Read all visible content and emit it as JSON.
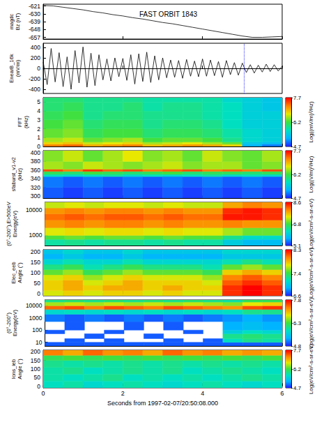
{
  "chart_data": [
    {
      "type": "line",
      "title": "FAST ORBIT 1843",
      "ylabel": [
        "magdc",
        "Bz (nT)"
      ],
      "color": "#000000",
      "tick_labels": "y",
      "x": [
        0,
        0.25,
        0.5,
        0.75,
        1,
        1.25,
        1.5,
        1.75,
        2,
        2.25,
        2.5,
        2.75,
        3,
        3.25,
        3.5,
        3.75,
        4,
        4.25,
        4.5,
        4.75,
        5,
        5.25,
        5.5,
        5.75,
        6
      ],
      "values": [
        -620.5,
        -621,
        -622.5,
        -624,
        -625.5,
        -627.5,
        -629,
        -631,
        -632.5,
        -634.5,
        -636,
        -638,
        -640,
        -641.5,
        -643.5,
        -645.5,
        -647.5,
        -649.5,
        -651.5,
        -653.5,
        -655.5,
        -657,
        -657,
        -656.5,
        -656
      ],
      "xlim": [
        0,
        6
      ],
      "xticks": [
        0,
        2,
        4,
        6
      ],
      "ylim": [
        -659,
        -619
      ],
      "yticks": [
        -621,
        -630,
        -639,
        -648,
        -657
      ]
    },
    {
      "type": "line",
      "ylabel": [
        "EnearB_16k",
        "(mV/m)"
      ],
      "color": "#000000",
      "tick_labels": "y",
      "vline": 5.05,
      "x": [
        0,
        0.1,
        0.2,
        0.3,
        0.4,
        0.5,
        0.6,
        0.7,
        0.8,
        0.9,
        1,
        1.1,
        1.2,
        1.3,
        1.4,
        1.5,
        1.6,
        1.7,
        1.8,
        1.9,
        2,
        2.1,
        2.2,
        2.3,
        2.4,
        2.5,
        2.6,
        2.7,
        2.8,
        2.9,
        3,
        3.1,
        3.2,
        3.3,
        3.4,
        3.5,
        3.6,
        3.7,
        3.8,
        3.9,
        4,
        4.1,
        4.2,
        4.3,
        4.4,
        4.5,
        4.6,
        4.7,
        4.8,
        4.9,
        5,
        5.1,
        5.2,
        5.3,
        5.4,
        5.5,
        5.6,
        5.7,
        5.8,
        5.9,
        6
      ],
      "values": [
        120,
        -310,
        380,
        -260,
        300,
        -350,
        220,
        -400,
        340,
        -280,
        410,
        -360,
        290,
        -330,
        260,
        -220,
        180,
        -240,
        200,
        -160,
        190,
        -230,
        260,
        -300,
        280,
        -250,
        310,
        -270,
        240,
        -220,
        200,
        -180,
        160,
        -170,
        150,
        -190,
        170,
        -150,
        140,
        -160,
        180,
        -150,
        160,
        -140,
        130,
        -170,
        150,
        -120,
        110,
        -130,
        100,
        -80,
        70,
        -90,
        60,
        -70,
        80,
        -60,
        70,
        -50,
        40
      ],
      "xlim": [
        0,
        6
      ],
      "xticks": [
        0,
        2,
        4,
        6
      ],
      "ylim": [
        -480,
        480
      ],
      "yticks": [
        -400,
        -200,
        0,
        200,
        400
      ]
    },
    {
      "type": "heatmap",
      "ylabel": [
        "FFT",
        "(kHz)"
      ],
      "tick_labels": "y",
      "x_edges": [
        0,
        0.5,
        1,
        1.5,
        2,
        2.5,
        3,
        3.5,
        4,
        4.5,
        5,
        5.5,
        6
      ],
      "y_edges": [
        0,
        0.25,
        0.5,
        1,
        2,
        3,
        4,
        5,
        5.5
      ],
      "cells": [
        [
          7.2,
          7.3,
          7.0,
          7.1,
          7.2,
          6.9,
          7.0,
          7.1,
          7.0,
          6.8,
          5.2,
          5.0
        ],
        [
          6.8,
          6.9,
          6.6,
          6.7,
          6.8,
          6.5,
          6.6,
          6.7,
          6.5,
          6.3,
          5.4,
          5.3
        ],
        [
          6.5,
          6.6,
          6.3,
          6.4,
          6.5,
          6.2,
          6.3,
          6.3,
          6.2,
          5.9,
          5.6,
          5.5
        ],
        [
          6.3,
          6.4,
          6.1,
          6.2,
          6.2,
          6.0,
          6.1,
          6.1,
          6.0,
          5.8,
          5.6,
          5.5
        ],
        [
          6.2,
          6.3,
          6.0,
          6.1,
          6.1,
          5.9,
          6.0,
          6.0,
          5.9,
          5.7,
          5.5,
          5.5
        ],
        [
          6.1,
          6.2,
          5.9,
          6.0,
          6.0,
          5.9,
          5.9,
          5.9,
          5.8,
          5.7,
          5.5,
          5.5
        ],
        [
          6.0,
          6.1,
          5.9,
          5.9,
          6.0,
          5.8,
          5.9,
          5.9,
          5.8,
          5.7,
          5.5,
          5.4
        ],
        [
          6.0,
          6.0,
          5.9,
          5.9,
          5.9,
          5.8,
          5.8,
          5.8,
          5.8,
          5.6,
          5.5,
          5.4
        ]
      ],
      "colorbar_label": "Log((mV/m)²/Hz)",
      "colorbar_range": [
        4.7,
        7.7
      ],
      "colorbar_ticks": [
        4.7,
        6.2,
        7.7
      ],
      "xlim": [
        0,
        6
      ],
      "xticks": [
        0,
        2,
        4,
        6
      ],
      "ylim": [
        0,
        5.5
      ],
      "yticks": [
        0,
        1,
        2,
        3,
        4,
        5
      ]
    },
    {
      "type": "heatmap",
      "ylabel": [
        "sfaburst_v1-v2",
        "(kHz)"
      ],
      "tick_labels": "y",
      "x_edges": [
        0,
        0.5,
        1,
        1.5,
        2,
        2.5,
        3,
        3.5,
        4,
        4.5,
        5,
        5.5,
        6
      ],
      "y_edges": [
        295,
        320,
        345,
        350,
        357,
        362,
        380,
        405
      ],
      "cells": [
        [
          4.9,
          4.8,
          4.9,
          4.8,
          4.9,
          4.8,
          4.9,
          4.8,
          4.9,
          4.8,
          4.9,
          4.8
        ],
        [
          5.0,
          4.9,
          5.0,
          4.9,
          5.0,
          4.9,
          5.0,
          4.9,
          5.0,
          4.9,
          5.0,
          4.9
        ],
        [
          5.7,
          5.6,
          5.7,
          5.8,
          5.6,
          5.7,
          5.6,
          5.7,
          5.8,
          5.6,
          5.7,
          5.6
        ],
        [
          6.1,
          6.0,
          6.2,
          6.1,
          6.0,
          6.1,
          6.2,
          6.0,
          6.1,
          6.1,
          6.0,
          6.1
        ],
        [
          7.4,
          7.2,
          7.5,
          7.3,
          7.4,
          7.2,
          7.3,
          7.4,
          7.2,
          7.3,
          7.2,
          7.4
        ],
        [
          6.5,
          6.4,
          6.6,
          6.5,
          6.4,
          6.5,
          6.6,
          6.4,
          6.5,
          6.5,
          6.3,
          6.4
        ],
        [
          6.4,
          6.6,
          6.3,
          6.5,
          6.7,
          6.4,
          6.5,
          6.3,
          6.6,
          6.4,
          6.3,
          6.5
        ]
      ],
      "colorbar_label": "Log((V/m)²/Hz)",
      "colorbar_range": [
        4.7,
        7.7
      ],
      "colorbar_ticks": [
        4.7,
        6.2,
        7.7
      ],
      "xlim": [
        0,
        6
      ],
      "xticks": [
        0,
        2,
        4,
        6
      ],
      "ylim": [
        295,
        405
      ],
      "yticks": [
        300,
        320,
        340,
        360,
        380,
        400
      ]
    },
    {
      "type": "heatmap",
      "ylabel": [
        "(0°-200°),E>500eV",
        "Energy(eV)"
      ],
      "tick_labels": "y",
      "log": "y",
      "x_edges": [
        0,
        0.5,
        1,
        1.5,
        2,
        2.5,
        3,
        3.5,
        4,
        4.5,
        5,
        5.5,
        6
      ],
      "y_edges": [
        400,
        700,
        1000,
        2000,
        4000,
        7000,
        12000,
        20000
      ],
      "cells": [
        [
          6.4,
          6.5,
          6.4,
          6.5,
          6.5,
          6.4,
          6.5,
          6.4,
          6.4,
          6.0,
          5.8,
          5.8
        ],
        [
          6.9,
          7.0,
          6.9,
          7.0,
          7.0,
          6.9,
          7.0,
          6.9,
          6.9,
          6.5,
          6.2,
          6.2
        ],
        [
          7.4,
          7.5,
          7.4,
          7.5,
          7.5,
          7.4,
          7.5,
          7.4,
          7.4,
          7.2,
          7.0,
          7.0
        ],
        [
          7.9,
          8.0,
          7.9,
          8.0,
          8.0,
          7.9,
          8.0,
          7.9,
          7.9,
          8.0,
          7.9,
          7.9
        ],
        [
          8.1,
          8.2,
          8.1,
          8.2,
          8.2,
          8.1,
          8.2,
          8.1,
          8.1,
          8.5,
          8.5,
          8.4
        ],
        [
          7.9,
          8.0,
          7.9,
          8.0,
          8.0,
          7.9,
          8.0,
          7.9,
          7.9,
          8.4,
          8.5,
          8.4
        ],
        [
          7.3,
          7.4,
          7.3,
          7.4,
          7.4,
          7.3,
          7.4,
          7.3,
          7.3,
          7.8,
          8.0,
          7.9
        ]
      ],
      "colorbar_label": "Log(eV/cm²-s-sr-eV)",
      "colorbar_range": [
        5.1,
        8.6
      ],
      "colorbar_ticks": [
        5.1,
        6.8,
        8.6
      ],
      "xlim": [
        0,
        6
      ],
      "xticks": [
        0,
        2,
        4,
        6
      ],
      "ylim": [
        400,
        20000
      ],
      "yticks": [
        1000,
        10000
      ]
    },
    {
      "type": "heatmap",
      "ylabel": [
        "Elec_eeb",
        "Angle (°)"
      ],
      "tick_labels": "y",
      "x_edges": [
        0,
        0.5,
        1,
        1.5,
        2,
        2.5,
        3,
        3.5,
        4,
        4.5,
        5,
        5.5,
        6
      ],
      "y_edges": [
        -10,
        15,
        40,
        65,
        90,
        115,
        140,
        165,
        190,
        210
      ],
      "cells": [
        [
          7.7,
          7.8,
          7.7,
          7.8,
          7.8,
          7.7,
          7.8,
          7.7,
          7.7,
          8.2,
          8.3,
          8.2
        ],
        [
          7.8,
          7.9,
          7.8,
          7.9,
          7.9,
          7.8,
          7.9,
          7.8,
          7.8,
          8.2,
          8.3,
          8.2
        ],
        [
          7.8,
          7.9,
          7.7,
          7.8,
          7.9,
          7.8,
          7.8,
          7.8,
          7.7,
          8.1,
          8.2,
          8.1
        ],
        [
          7.7,
          7.8,
          7.6,
          7.7,
          7.8,
          7.7,
          7.7,
          7.7,
          7.6,
          8.0,
          8.1,
          8.0
        ],
        [
          7.5,
          7.6,
          7.4,
          7.5,
          7.6,
          7.5,
          7.5,
          7.5,
          7.4,
          7.8,
          7.9,
          7.8
        ],
        [
          7.3,
          7.4,
          7.2,
          7.3,
          7.4,
          7.3,
          7.3,
          7.3,
          7.2,
          7.5,
          7.6,
          7.5
        ],
        [
          7.1,
          7.2,
          7.1,
          7.1,
          7.2,
          7.1,
          7.1,
          7.1,
          7.1,
          7.2,
          7.3,
          7.2
        ],
        [
          6.9,
          7.0,
          6.9,
          6.9,
          7.0,
          6.9,
          6.9,
          6.9,
          6.9,
          7.0,
          7.0,
          7.0
        ],
        [
          7.0,
          7.1,
          7.0,
          7.0,
          7.1,
          7.0,
          7.0,
          7.0,
          7.0,
          7.1,
          7.1,
          7.1
        ]
      ],
      "colorbar_label": "Log(eV/cm²-s-sr-eV)",
      "colorbar_range": [
        6.6,
        8.3
      ],
      "colorbar_ticks": [
        6.6,
        7.4,
        8.3
      ],
      "xlim": [
        0,
        6
      ],
      "xticks": [
        0,
        2,
        4,
        6
      ],
      "ylim": [
        -10,
        210
      ],
      "yticks": [
        0,
        50,
        100,
        150,
        200
      ]
    },
    {
      "type": "heatmap",
      "ylabel": [
        "(0°-200°)",
        "Energy(eV)"
      ],
      "tick_labels": "y",
      "log": "y",
      "x_edges": [
        0,
        0.5,
        1,
        1.5,
        2,
        2.5,
        3,
        3.5,
        4,
        4.5,
        5,
        5.5,
        6
      ],
      "y_edges": [
        5,
        10,
        20,
        50,
        100,
        500,
        2000,
        5000,
        10000,
        20000,
        30000
      ],
      "cells": [
        [
          5.0,
          5.0,
          5.0,
          5.0,
          5.0,
          5.0,
          5.0,
          5.0,
          5.0,
          5.0,
          5.0,
          5.0
        ],
        [
          null,
          5.0,
          null,
          5.0,
          null,
          null,
          5.0,
          null,
          5.0,
          5.8,
          6.0,
          5.9
        ],
        [
          null,
          null,
          5.0,
          null,
          null,
          5.0,
          null,
          null,
          null,
          6.0,
          6.1,
          6.0
        ],
        [
          5.0,
          null,
          null,
          5.0,
          null,
          null,
          null,
          5.0,
          null,
          5.6,
          5.8,
          5.7
        ],
        [
          null,
          5.0,
          null,
          null,
          5.0,
          null,
          5.0,
          null,
          null,
          5.3,
          5.4,
          5.3
        ],
        [
          5.1,
          5.0,
          5.1,
          5.0,
          5.1,
          5.0,
          5.1,
          5.0,
          5.1,
          5.2,
          5.3,
          5.2
        ],
        [
          5.7,
          5.8,
          5.7,
          5.8,
          5.7,
          5.8,
          5.7,
          5.8,
          5.7,
          5.8,
          6.0,
          6.0
        ],
        [
          7.4,
          7.5,
          7.3,
          7.5,
          7.4,
          7.3,
          7.5,
          7.4,
          7.3,
          7.2,
          7.5,
          7.6
        ],
        [
          6.6,
          6.7,
          6.6,
          6.7,
          6.6,
          6.7,
          6.6,
          6.7,
          6.6,
          6.5,
          6.8,
          6.9
        ],
        [
          6.0,
          6.1,
          6.0,
          6.1,
          6.0,
          6.1,
          6.0,
          6.1,
          6.0,
          5.9,
          6.2,
          6.2
        ]
      ],
      "colorbar_label": "Log(eV/cm²-s-sr-eV)",
      "colorbar_range": [
        4.8,
        7.8
      ],
      "colorbar_ticks": [
        4.8,
        6.3,
        7.8
      ],
      "xlim": [
        0,
        6
      ],
      "xticks": [
        0,
        2,
        4,
        6
      ],
      "ylim": [
        5,
        30000
      ],
      "yticks": [
        10,
        100,
        1000,
        10000
      ]
    },
    {
      "type": "heatmap",
      "ylabel": [
        "Ions_ieb",
        "Angle (°)"
      ],
      "xlabel": "Seconds from 1997-02-07/20:50:08.000",
      "x_edges": [
        0,
        0.5,
        1,
        1.5,
        2,
        2.5,
        3,
        3.5,
        4,
        4.5,
        5,
        5.5,
        6
      ],
      "y_edges": [
        -10,
        30,
        70,
        110,
        150,
        180,
        210
      ],
      "cells": [
        [
          5.7,
          5.8,
          5.6,
          5.7,
          5.8,
          5.7,
          5.6,
          5.7,
          5.8,
          5.7,
          5.6,
          5.7
        ],
        [
          5.8,
          5.7,
          5.8,
          5.9,
          5.7,
          5.8,
          5.7,
          5.8,
          5.7,
          5.8,
          5.9,
          5.8
        ],
        [
          5.8,
          5.9,
          5.7,
          5.8,
          5.9,
          5.8,
          5.9,
          5.7,
          5.8,
          5.9,
          5.8,
          5.7
        ],
        [
          5.9,
          5.8,
          5.9,
          5.8,
          5.9,
          5.8,
          5.9,
          5.8,
          5.9,
          5.8,
          5.9,
          5.8
        ],
        [
          6.1,
          6.2,
          6.1,
          6.2,
          6.1,
          6.2,
          6.1,
          6.2,
          6.1,
          6.2,
          6.1,
          6.2
        ],
        [
          7.2,
          7.0,
          7.3,
          7.1,
          7.2,
          7.0,
          7.3,
          7.1,
          7.2,
          7.0,
          7.1,
          7.0
        ]
      ],
      "colorbar_label": "Log(eV/cm²-s-sr-eV)",
      "colorbar_range": [
        4.7,
        7.7
      ],
      "colorbar_ticks": [
        4.7,
        6.2,
        7.7
      ],
      "xlim": [
        0,
        6
      ],
      "xticks": [
        0,
        2,
        4,
        6
      ],
      "ylim": [
        -10,
        210
      ],
      "yticks": [
        0,
        50,
        100,
        150,
        200
      ]
    }
  ]
}
